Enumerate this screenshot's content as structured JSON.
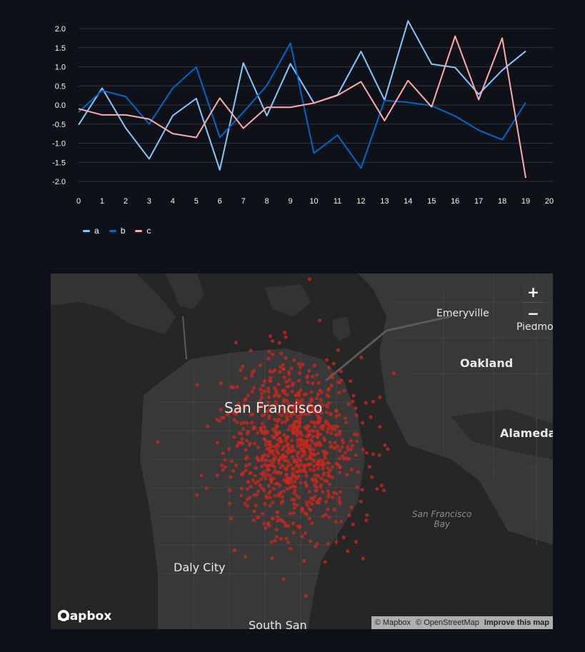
{
  "chart_data": {
    "type": "line",
    "x": [
      0,
      1,
      2,
      3,
      4,
      5,
      6,
      7,
      8,
      9,
      10,
      11,
      12,
      13,
      14,
      15,
      16,
      17,
      18,
      19
    ],
    "xticks": [
      "0",
      "1",
      "2",
      "3",
      "4",
      "5",
      "6",
      "7",
      "8",
      "9",
      "10",
      "11",
      "12",
      "13",
      "14",
      "15",
      "16",
      "17",
      "18",
      "19",
      "20"
    ],
    "yticks": [
      "2.0",
      "1.5",
      "1.0",
      "0.5",
      "0.0",
      "-0.5",
      "-1.0",
      "-1.5",
      "-2.0"
    ],
    "xlim": [
      0,
      20
    ],
    "ylim": [
      -2.1,
      2.1
    ],
    "grid": true,
    "legend_position": "bottom-left",
    "series": [
      {
        "name": "a",
        "color": "#83c9ff",
        "values": [
          -0.52,
          0.44,
          -0.6,
          -1.41,
          -0.28,
          0.17,
          -1.7,
          1.1,
          -0.28,
          1.08,
          0.05,
          0.26,
          1.4,
          0.13,
          2.2,
          1.07,
          0.98,
          0.28,
          0.91,
          1.41
        ]
      },
      {
        "name": "b",
        "color": "#0068c9",
        "values": [
          -0.19,
          0.38,
          0.22,
          -0.5,
          0.44,
          0.99,
          -0.85,
          -0.19,
          0.51,
          1.62,
          -1.26,
          -0.79,
          -1.65,
          0.12,
          0.07,
          -0.02,
          -0.29,
          -0.66,
          -0.91,
          0.07
        ]
      },
      {
        "name": "c",
        "color": "#ffabab",
        "values": [
          -0.1,
          -0.26,
          -0.26,
          -0.37,
          -0.75,
          -0.85,
          0.18,
          -0.61,
          -0.06,
          -0.06,
          0.05,
          0.25,
          0.61,
          -0.41,
          0.64,
          -0.05,
          1.8,
          0.14,
          1.75,
          -1.91
        ]
      }
    ]
  },
  "map": {
    "places": {
      "emeryville": "Emeryville",
      "piedmont": "Piedmon",
      "oakland": "Oakland",
      "alameda": "Alameda",
      "san_francisco": "San Francisco",
      "sf_bay": "San Francisco\nBay",
      "daly_city": "Daly City",
      "south_san": "South San"
    },
    "zoom_in": "+",
    "zoom_out": "−",
    "logo": "mapbox",
    "attribution": {
      "mapbox": "© Mapbox",
      "osm": "© OpenStreetMap",
      "improve": "Improve this map"
    },
    "point_color": "#c8281e"
  }
}
